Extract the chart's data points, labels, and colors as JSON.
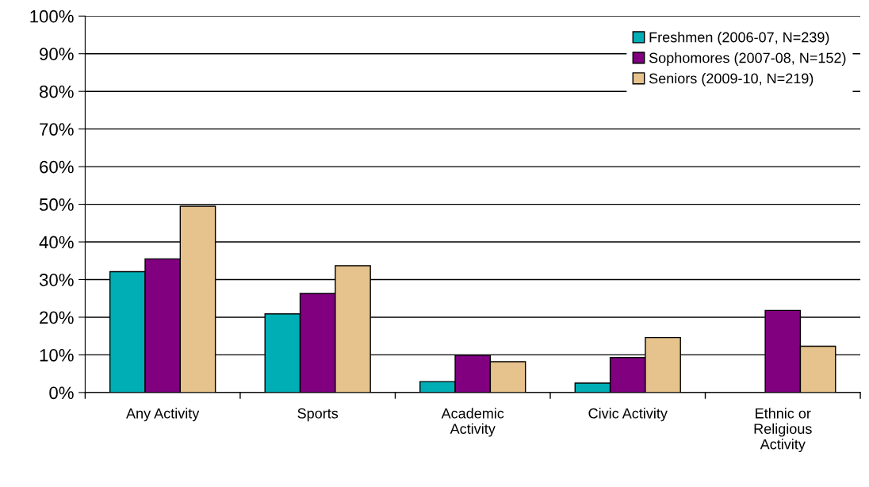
{
  "chart_data": {
    "type": "bar",
    "categories": [
      "Any Activity",
      "Sports",
      "Academic\nActivity",
      "Civic Activity",
      "Ethnic or\nReligious\nActivity"
    ],
    "series": [
      {
        "name": "Freshmen (2006-07, N=239)",
        "color": "#00aeb5",
        "values": [
          32.1,
          20.9,
          2.9,
          2.5,
          null
        ]
      },
      {
        "name": "Sophomores (2007-08, N=152)",
        "color": "#800080",
        "values": [
          35.5,
          26.3,
          9.9,
          9.3,
          21.8
        ]
      },
      {
        "name": "Seniors (2009-10, N=219)",
        "color": "#e6c28c",
        "values": [
          49.5,
          33.7,
          8.2,
          14.6,
          12.3
        ]
      }
    ],
    "ylim": [
      0,
      100
    ],
    "yticks": [
      {
        "value": 0,
        "label": "0%"
      },
      {
        "value": 10,
        "label": "10%"
      },
      {
        "value": 20,
        "label": "20%"
      },
      {
        "value": 30,
        "label": "30%"
      },
      {
        "value": 40,
        "label": "40%"
      },
      {
        "value": 50,
        "label": "50%"
      },
      {
        "value": 60,
        "label": "60%"
      },
      {
        "value": 70,
        "label": "70%"
      },
      {
        "value": 80,
        "label": "80%"
      },
      {
        "value": 90,
        "label": "90%"
      },
      {
        "value": 100,
        "label": "100%"
      }
    ],
    "grid": "y",
    "legend": "top right"
  }
}
